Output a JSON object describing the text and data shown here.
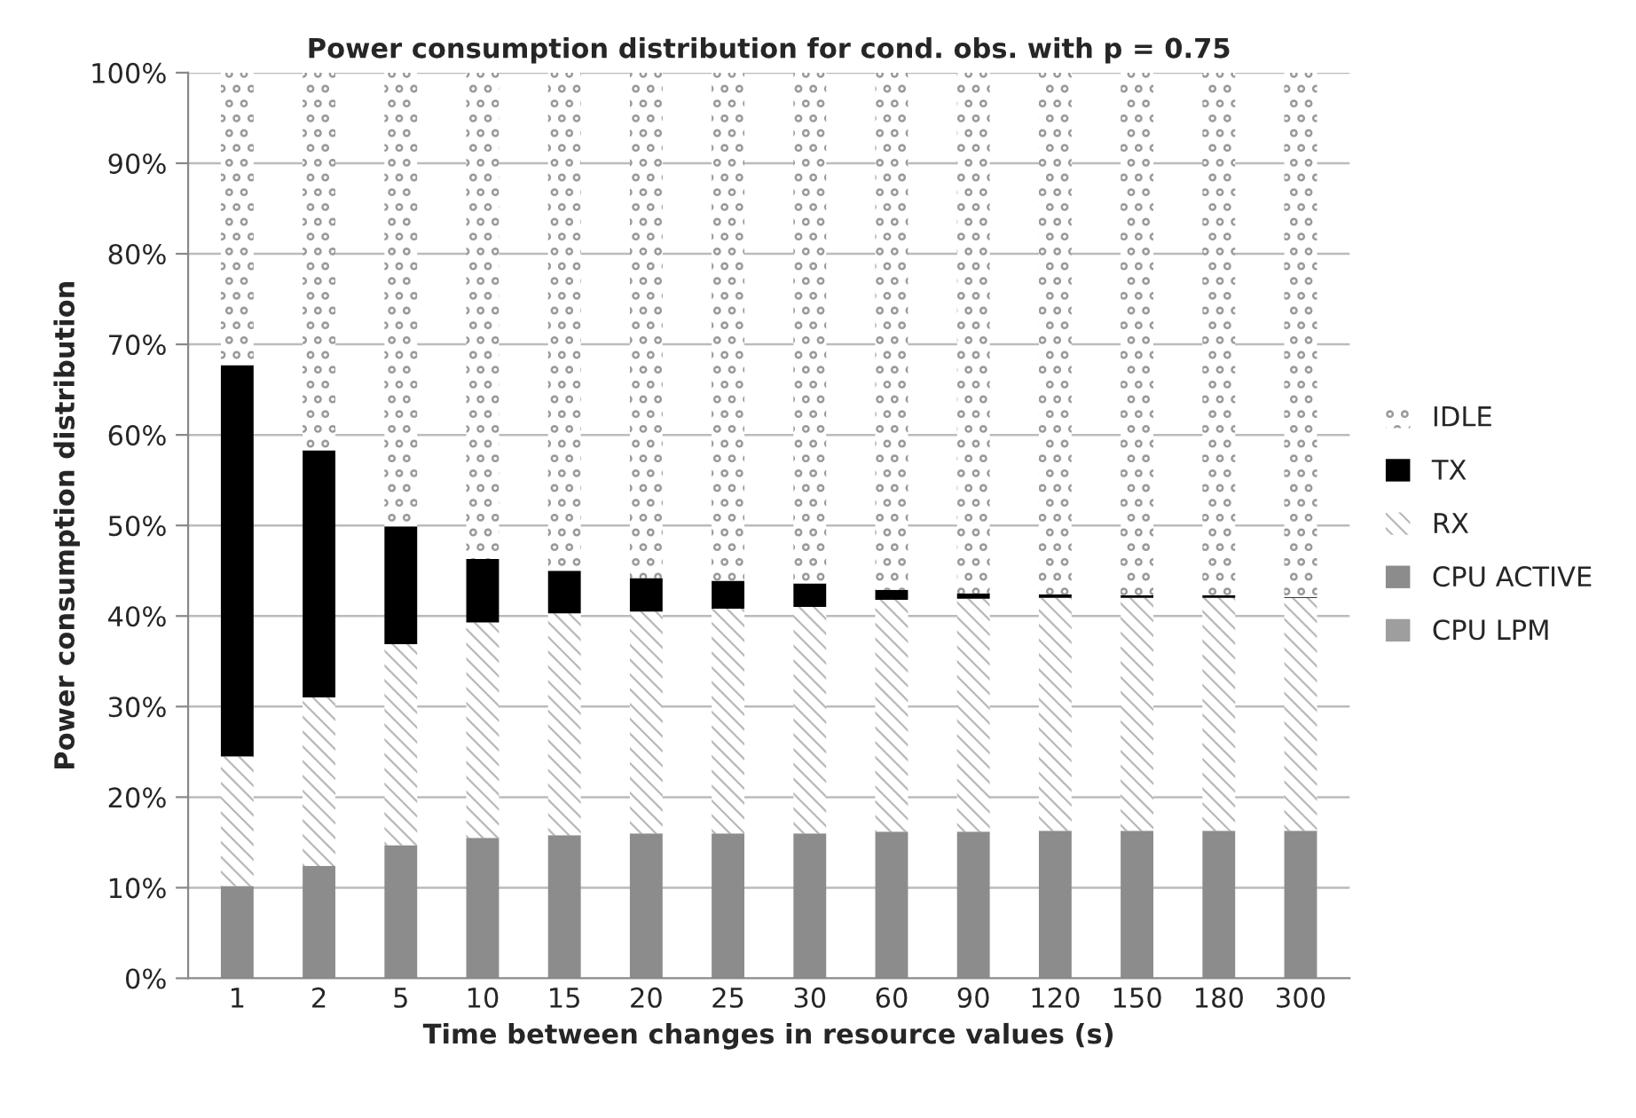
{
  "chart_data": {
    "type": "bar",
    "stacked": true,
    "title": "Power consumption distribution for cond. obs. with p = 0.75",
    "xlabel": "Time between changes in resource values (s)",
    "ylabel": "Power consumption distribution",
    "categories": [
      "1",
      "2",
      "5",
      "10",
      "15",
      "20",
      "25",
      "30",
      "60",
      "90",
      "120",
      "150",
      "180",
      "300"
    ],
    "series": [
      {
        "name": "CPU LPM",
        "color": "#9e9e9e",
        "values": [
          0,
          0,
          0,
          0,
          0,
          0,
          0,
          0,
          0,
          0,
          0,
          0,
          0,
          0
        ]
      },
      {
        "name": "CPU ACTIVE",
        "color": "#8c8c8c",
        "values": [
          10.2,
          12.4,
          14.7,
          15.5,
          15.8,
          16.0,
          16.0,
          16.0,
          16.2,
          16.2,
          16.3,
          16.3,
          16.3,
          16.3
        ]
      },
      {
        "name": "RX",
        "color": "#b8b8b8",
        "values": [
          14.3,
          18.6,
          22.2,
          23.8,
          24.5,
          24.5,
          24.8,
          25.0,
          25.6,
          25.7,
          25.7,
          25.7,
          25.7,
          25.7
        ]
      },
      {
        "name": "TX",
        "color": "#000000",
        "values": [
          43.2,
          27.3,
          13.0,
          7.0,
          4.7,
          3.7,
          3.1,
          2.6,
          1.1,
          0.6,
          0.4,
          0.3,
          0.3,
          0.1
        ]
      },
      {
        "name": "IDLE",
        "color": "#9a9a9a",
        "values": [
          32.3,
          41.7,
          50.1,
          53.7,
          55.0,
          55.8,
          56.1,
          56.4,
          57.1,
          57.5,
          57.6,
          57.7,
          57.7,
          57.9
        ]
      }
    ],
    "ylim": [
      0,
      100
    ],
    "yticks": [
      {
        "value": 0,
        "label": "0%"
      },
      {
        "value": 10,
        "label": "10%"
      },
      {
        "value": 20,
        "label": "20%"
      },
      {
        "value": 30,
        "label": "30%"
      },
      {
        "value": 40,
        "label": "40%"
      },
      {
        "value": 50,
        "label": "50%"
      },
      {
        "value": 60,
        "label": "60%"
      },
      {
        "value": 70,
        "label": "70%"
      },
      {
        "value": 80,
        "label": "80%"
      },
      {
        "value": 90,
        "label": "90%"
      },
      {
        "value": 100,
        "label": "100%"
      }
    ],
    "grid": "y",
    "legend": "right"
  }
}
